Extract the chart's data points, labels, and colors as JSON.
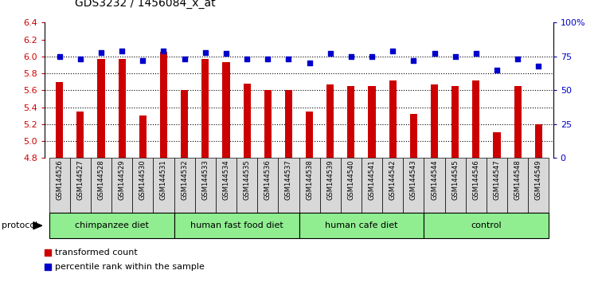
{
  "title": "GDS3232 / 1456084_x_at",
  "samples": [
    "GSM144526",
    "GSM144527",
    "GSM144528",
    "GSM144529",
    "GSM144530",
    "GSM144531",
    "GSM144532",
    "GSM144533",
    "GSM144534",
    "GSM144535",
    "GSM144536",
    "GSM144537",
    "GSM144538",
    "GSM144539",
    "GSM144540",
    "GSM144541",
    "GSM144542",
    "GSM144543",
    "GSM144544",
    "GSM144545",
    "GSM144546",
    "GSM144547",
    "GSM144548",
    "GSM144549"
  ],
  "transformed_count": [
    5.7,
    5.35,
    5.97,
    5.97,
    5.3,
    6.05,
    5.6,
    5.97,
    5.93,
    5.68,
    5.6,
    5.6,
    5.35,
    5.67,
    5.65,
    5.65,
    5.72,
    5.32,
    5.67,
    5.65,
    5.72,
    5.1,
    5.65,
    5.2
  ],
  "percentile_rank": [
    75,
    73,
    78,
    79,
    72,
    79,
    73,
    78,
    77,
    73,
    73,
    73,
    70,
    77,
    75,
    75,
    79,
    72,
    77,
    75,
    77,
    65,
    73,
    68
  ],
  "group_labels": [
    "chimpanzee diet",
    "human fast food diet",
    "human cafe diet",
    "control"
  ],
  "group_ranges": [
    [
      0,
      5
    ],
    [
      6,
      11
    ],
    [
      12,
      17
    ],
    [
      18,
      23
    ]
  ],
  "group_color": "#90EE90",
  "ylim_left": [
    4.8,
    6.4
  ],
  "ylim_right": [
    0,
    100
  ],
  "bar_color": "#CC0000",
  "dot_color": "#0000CC",
  "tick_label_color_left": "#CC0000",
  "tick_label_color_right": "#0000CC",
  "protocol_label": "protocol",
  "legend_items": [
    {
      "label": "transformed count",
      "color": "#CC0000"
    },
    {
      "label": "percentile rank within the sample",
      "color": "#0000CC"
    }
  ],
  "grid_dotted_vals": [
    5.0,
    5.2,
    5.4,
    5.6,
    5.8,
    6.0
  ],
  "label_box_color": "#D8D8D8"
}
